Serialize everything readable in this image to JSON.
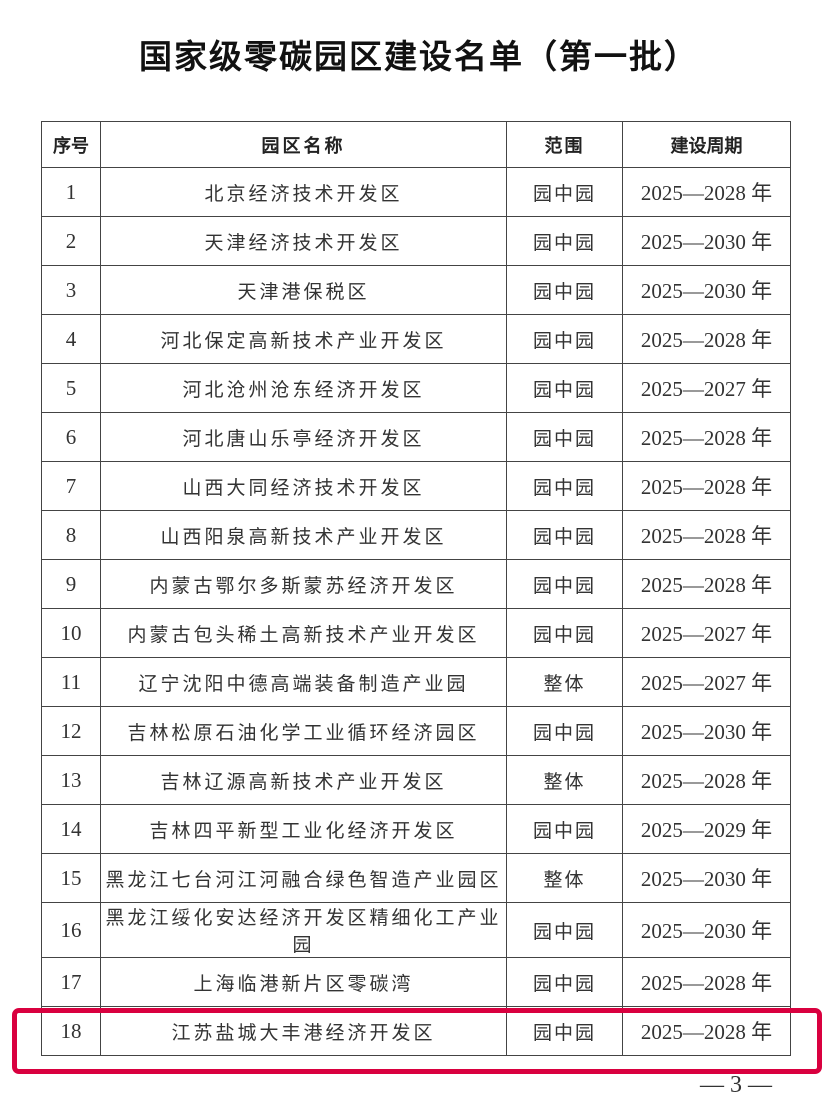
{
  "title": "国家级零碳园区建设名单（第一批）",
  "table": {
    "headers": [
      "序号",
      "园区名称",
      "范围",
      "建设周期"
    ],
    "rows": [
      [
        "1",
        "北京经济技术开发区",
        "园中园",
        "2025—2028 年"
      ],
      [
        "2",
        "天津经济技术开发区",
        "园中园",
        "2025—2030 年"
      ],
      [
        "3",
        "天津港保税区",
        "园中园",
        "2025—2030 年"
      ],
      [
        "4",
        "河北保定高新技术产业开发区",
        "园中园",
        "2025—2028 年"
      ],
      [
        "5",
        "河北沧州沧东经济开发区",
        "园中园",
        "2025—2027 年"
      ],
      [
        "6",
        "河北唐山乐亭经济开发区",
        "园中园",
        "2025—2028 年"
      ],
      [
        "7",
        "山西大同经济技术开发区",
        "园中园",
        "2025—2028 年"
      ],
      [
        "8",
        "山西阳泉高新技术产业开发区",
        "园中园",
        "2025—2028 年"
      ],
      [
        "9",
        "内蒙古鄂尔多斯蒙苏经济开发区",
        "园中园",
        "2025—2028 年"
      ],
      [
        "10",
        "内蒙古包头稀土高新技术产业开发区",
        "园中园",
        "2025—2027 年"
      ],
      [
        "11",
        "辽宁沈阳中德高端装备制造产业园",
        "整体",
        "2025—2027 年"
      ],
      [
        "12",
        "吉林松原石油化学工业循环经济园区",
        "园中园",
        "2025—2030 年"
      ],
      [
        "13",
        "吉林辽源高新技术产业开发区",
        "整体",
        "2025—2028 年"
      ],
      [
        "14",
        "吉林四平新型工业化经济开发区",
        "园中园",
        "2025—2029 年"
      ],
      [
        "15",
        "黑龙江七台河江河融合绿色智造产业园区",
        "整体",
        "2025—2030 年"
      ],
      [
        "16",
        "黑龙江绥化安达经济开发区精细化工产业园",
        "园中园",
        "2025—2030 年"
      ],
      [
        "17",
        "上海临港新片区零碳湾",
        "园中园",
        "2025—2028 年"
      ],
      [
        "18",
        "江苏盐城大丰港经济开发区",
        "园中园",
        "2025—2028 年"
      ]
    ],
    "highlighted_row": 18,
    "highlight_color": "#d9003f"
  },
  "page_number": "— 3 —"
}
